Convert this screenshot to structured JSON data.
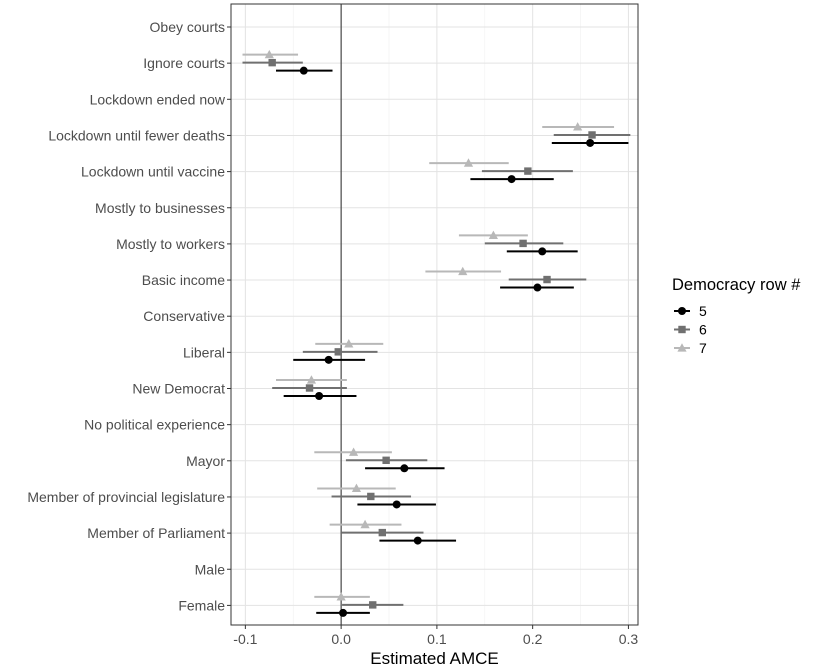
{
  "chart_data": {
    "type": "scatter",
    "title": "",
    "xlabel": "Estimated AMCE",
    "ylabel": "",
    "xlim": [
      -0.115,
      0.31
    ],
    "x_ticks": [
      -0.1,
      0.0,
      0.1,
      0.2,
      0.3
    ],
    "x_tick_labels": [
      "-0.1",
      "0.0",
      "0.1",
      "0.2",
      "0.3"
    ],
    "grid": true,
    "reference_line": 0,
    "legend": {
      "title": "Democracy row #",
      "placement": "right"
    },
    "series": [
      {
        "name": "5",
        "color": "#000000",
        "marker": "circle"
      },
      {
        "name": "6",
        "color": "#707070",
        "marker": "square"
      },
      {
        "name": "7",
        "color": "#b8b8b8",
        "marker": "triangle"
      }
    ],
    "categories": [
      "Obey courts",
      "Ignore courts",
      "Lockdown ended now",
      "Lockdown until fewer deaths",
      "Lockdown until vaccine",
      "Mostly to businesses",
      "Mostly to workers",
      "Basic income",
      "Conservative",
      "Liberal",
      "New Democrat",
      "No political experience",
      "Mayor",
      "Member of provincial legislature",
      "Member of Parliament",
      "Male",
      "Female"
    ],
    "points": [
      {
        "category": "Ignore courts",
        "series": "7",
        "estimate": -0.075,
        "ci": [
          -0.103,
          -0.045
        ]
      },
      {
        "category": "Ignore courts",
        "series": "6",
        "estimate": -0.072,
        "ci": [
          -0.103,
          -0.04
        ]
      },
      {
        "category": "Ignore courts",
        "series": "5",
        "estimate": -0.039,
        "ci": [
          -0.068,
          -0.009
        ]
      },
      {
        "category": "Lockdown until fewer deaths",
        "series": "7",
        "estimate": 0.247,
        "ci": [
          0.21,
          0.285
        ]
      },
      {
        "category": "Lockdown until fewer deaths",
        "series": "6",
        "estimate": 0.262,
        "ci": [
          0.222,
          0.302
        ]
      },
      {
        "category": "Lockdown until fewer deaths",
        "series": "5",
        "estimate": 0.26,
        "ci": [
          0.22,
          0.3
        ]
      },
      {
        "category": "Lockdown until vaccine",
        "series": "7",
        "estimate": 0.133,
        "ci": [
          0.092,
          0.175
        ]
      },
      {
        "category": "Lockdown until vaccine",
        "series": "6",
        "estimate": 0.195,
        "ci": [
          0.147,
          0.242
        ]
      },
      {
        "category": "Lockdown until vaccine",
        "series": "5",
        "estimate": 0.178,
        "ci": [
          0.135,
          0.222
        ]
      },
      {
        "category": "Mostly to workers",
        "series": "7",
        "estimate": 0.159,
        "ci": [
          0.123,
          0.195
        ]
      },
      {
        "category": "Mostly to workers",
        "series": "6",
        "estimate": 0.19,
        "ci": [
          0.15,
          0.232
        ]
      },
      {
        "category": "Mostly to workers",
        "series": "5",
        "estimate": 0.21,
        "ci": [
          0.173,
          0.247
        ]
      },
      {
        "category": "Basic income",
        "series": "7",
        "estimate": 0.127,
        "ci": [
          0.088,
          0.167
        ]
      },
      {
        "category": "Basic income",
        "series": "6",
        "estimate": 0.215,
        "ci": [
          0.175,
          0.256
        ]
      },
      {
        "category": "Basic income",
        "series": "5",
        "estimate": 0.205,
        "ci": [
          0.166,
          0.243
        ]
      },
      {
        "category": "Liberal",
        "series": "7",
        "estimate": 0.008,
        "ci": [
          -0.027,
          0.044
        ]
      },
      {
        "category": "Liberal",
        "series": "6",
        "estimate": -0.003,
        "ci": [
          -0.04,
          0.038
        ]
      },
      {
        "category": "Liberal",
        "series": "5",
        "estimate": -0.013,
        "ci": [
          -0.05,
          0.025
        ]
      },
      {
        "category": "New Democrat",
        "series": "7",
        "estimate": -0.031,
        "ci": [
          -0.068,
          0.006
        ]
      },
      {
        "category": "New Democrat",
        "series": "6",
        "estimate": -0.033,
        "ci": [
          -0.072,
          0.006
        ]
      },
      {
        "category": "New Democrat",
        "series": "5",
        "estimate": -0.023,
        "ci": [
          -0.06,
          0.016
        ]
      },
      {
        "category": "Mayor",
        "series": "7",
        "estimate": 0.013,
        "ci": [
          -0.028,
          0.053
        ]
      },
      {
        "category": "Mayor",
        "series": "6",
        "estimate": 0.047,
        "ci": [
          0.005,
          0.09
        ]
      },
      {
        "category": "Mayor",
        "series": "5",
        "estimate": 0.066,
        "ci": [
          0.025,
          0.108
        ]
      },
      {
        "category": "Member of provincial legislature",
        "series": "7",
        "estimate": 0.016,
        "ci": [
          -0.025,
          0.057
        ]
      },
      {
        "category": "Member of provincial legislature",
        "series": "6",
        "estimate": 0.031,
        "ci": [
          -0.01,
          0.073
        ]
      },
      {
        "category": "Member of provincial legislature",
        "series": "5",
        "estimate": 0.058,
        "ci": [
          0.017,
          0.099
        ]
      },
      {
        "category": "Member of Parliament",
        "series": "7",
        "estimate": 0.025,
        "ci": [
          -0.012,
          0.063
        ]
      },
      {
        "category": "Member of Parliament",
        "series": "6",
        "estimate": 0.043,
        "ci": [
          0.0,
          0.086
        ]
      },
      {
        "category": "Member of Parliament",
        "series": "5",
        "estimate": 0.08,
        "ci": [
          0.04,
          0.12
        ]
      },
      {
        "category": "Female",
        "series": "7",
        "estimate": 0.0,
        "ci": [
          -0.028,
          0.03
        ]
      },
      {
        "category": "Female",
        "series": "6",
        "estimate": 0.033,
        "ci": [
          0.001,
          0.065
        ]
      },
      {
        "category": "Female",
        "series": "5",
        "estimate": 0.002,
        "ci": [
          -0.026,
          0.03
        ]
      }
    ]
  }
}
